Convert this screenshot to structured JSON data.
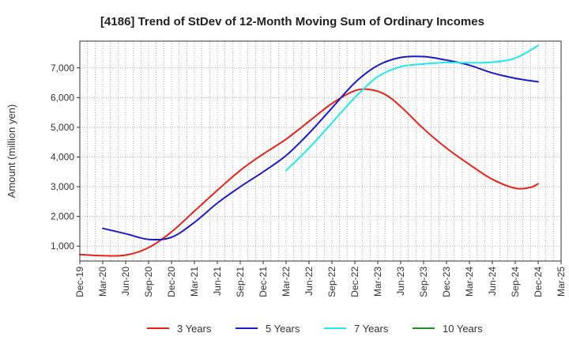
{
  "chart_data": {
    "type": "line",
    "title": "[4186]  Trend of StDev of 12-Month Moving Sum of Ordinary Incomes",
    "xlabel": "",
    "ylabel": "Amount (million yen)",
    "grid": true,
    "legend_position": "bottom",
    "ylim": [
      500,
      7900
    ],
    "yticks": [
      1000,
      2000,
      3000,
      4000,
      5000,
      6000,
      7000
    ],
    "ytick_labels": [
      "1,000",
      "2,000",
      "3,000",
      "4,000",
      "5,000",
      "6,000",
      "7,000"
    ],
    "x_start": "Dec-19",
    "x_months": 63,
    "xtick_labels": [
      "Dec-19",
      "Mar-20",
      "Jun-20",
      "Sep-20",
      "Dec-20",
      "Mar-21",
      "Jun-21",
      "Sep-21",
      "Dec-21",
      "Mar-22",
      "Jun-22",
      "Sep-22",
      "Dec-22",
      "Mar-23",
      "Jun-23",
      "Sep-23",
      "Dec-23",
      "Mar-24",
      "Jun-24",
      "Sep-24",
      "Dec-24",
      "Mar-25"
    ],
    "series": [
      {
        "name": "3 Years",
        "color": "#e8221a",
        "points": [
          [
            0,
            720
          ],
          [
            3,
            680
          ],
          [
            6,
            700
          ],
          [
            9,
            950
          ],
          [
            12,
            1480
          ],
          [
            15,
            2180
          ],
          [
            18,
            2880
          ],
          [
            21,
            3550
          ],
          [
            24,
            4100
          ],
          [
            27,
            4600
          ],
          [
            30,
            5200
          ],
          [
            33,
            5800
          ],
          [
            36,
            6230
          ],
          [
            38,
            6270
          ],
          [
            40,
            6100
          ],
          [
            42,
            5700
          ],
          [
            45,
            4950
          ],
          [
            48,
            4300
          ],
          [
            51,
            3750
          ],
          [
            54,
            3250
          ],
          [
            57,
            2950
          ],
          [
            59,
            2980
          ],
          [
            60,
            3100
          ]
        ]
      },
      {
        "name": "5 Years",
        "color": "#1a1acc",
        "points": [
          [
            3,
            1600
          ],
          [
            6,
            1420
          ],
          [
            9,
            1230
          ],
          [
            12,
            1300
          ],
          [
            15,
            1800
          ],
          [
            18,
            2450
          ],
          [
            21,
            3000
          ],
          [
            24,
            3500
          ],
          [
            27,
            4050
          ],
          [
            30,
            4800
          ],
          [
            33,
            5650
          ],
          [
            36,
            6500
          ],
          [
            39,
            7080
          ],
          [
            42,
            7350
          ],
          [
            45,
            7380
          ],
          [
            48,
            7260
          ],
          [
            51,
            7090
          ],
          [
            54,
            6830
          ],
          [
            57,
            6650
          ],
          [
            60,
            6530
          ]
        ]
      },
      {
        "name": "7 Years",
        "color": "#22e8e8",
        "points": [
          [
            27,
            3550
          ],
          [
            30,
            4300
          ],
          [
            33,
            5150
          ],
          [
            36,
            6000
          ],
          [
            39,
            6700
          ],
          [
            42,
            7040
          ],
          [
            45,
            7130
          ],
          [
            48,
            7180
          ],
          [
            51,
            7170
          ],
          [
            54,
            7190
          ],
          [
            57,
            7330
          ],
          [
            60,
            7750
          ]
        ]
      },
      {
        "name": "10 Years",
        "color": "#228b22",
        "points": []
      }
    ]
  }
}
